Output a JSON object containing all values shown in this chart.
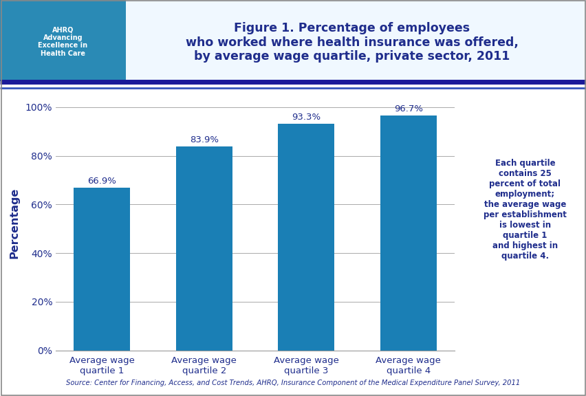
{
  "categories": [
    "Average wage\nquartile 1",
    "Average wage\nquartile 2",
    "Average wage\nquartile 3",
    "Average wage\nquartile 4"
  ],
  "values": [
    66.9,
    83.9,
    93.3,
    96.7
  ],
  "bar_color": "#1a7fb5",
  "bar_labels": [
    "66.9%",
    "83.9%",
    "93.3%",
    "96.7%"
  ],
  "ylabel": "Percentage",
  "ylim": [
    0,
    105
  ],
  "yticks": [
    0,
    20,
    40,
    60,
    80,
    100
  ],
  "ytick_labels": [
    "0%",
    "20%",
    "40%",
    "60%",
    "80%",
    "100%"
  ],
  "title": "Figure 1. Percentage of employees\nwho worked where health insurance was offered,\nby average wage quartile, private sector, 2011",
  "title_color": "#1f2d8c",
  "annotation": "Each quartile\ncontains 25\npercent of total\nemployment;\nthe average wage\nper establishment\nis lowest in\nquartile 1\nand highest in\nquartile 4.",
  "annotation_color": "#1f2d8c",
  "source_text": "Source: Center for Financing, Access, and Cost Trends, AHRQ, Insurance Component of the Medical Expenditure Panel Survey, 2011",
  "source_color": "#1f2d8c",
  "background_color": "#ffffff",
  "separator_color_dark": "#1a1a99",
  "separator_color_light": "#3355bb",
  "grid_color": "#aaaaaa",
  "label_color": "#1f2d8c",
  "bar_label_color": "#1f2d8c",
  "border_color": "#888888",
  "header_bg": "#e8f4fb",
  "logo_bg": "#2a8ab5"
}
